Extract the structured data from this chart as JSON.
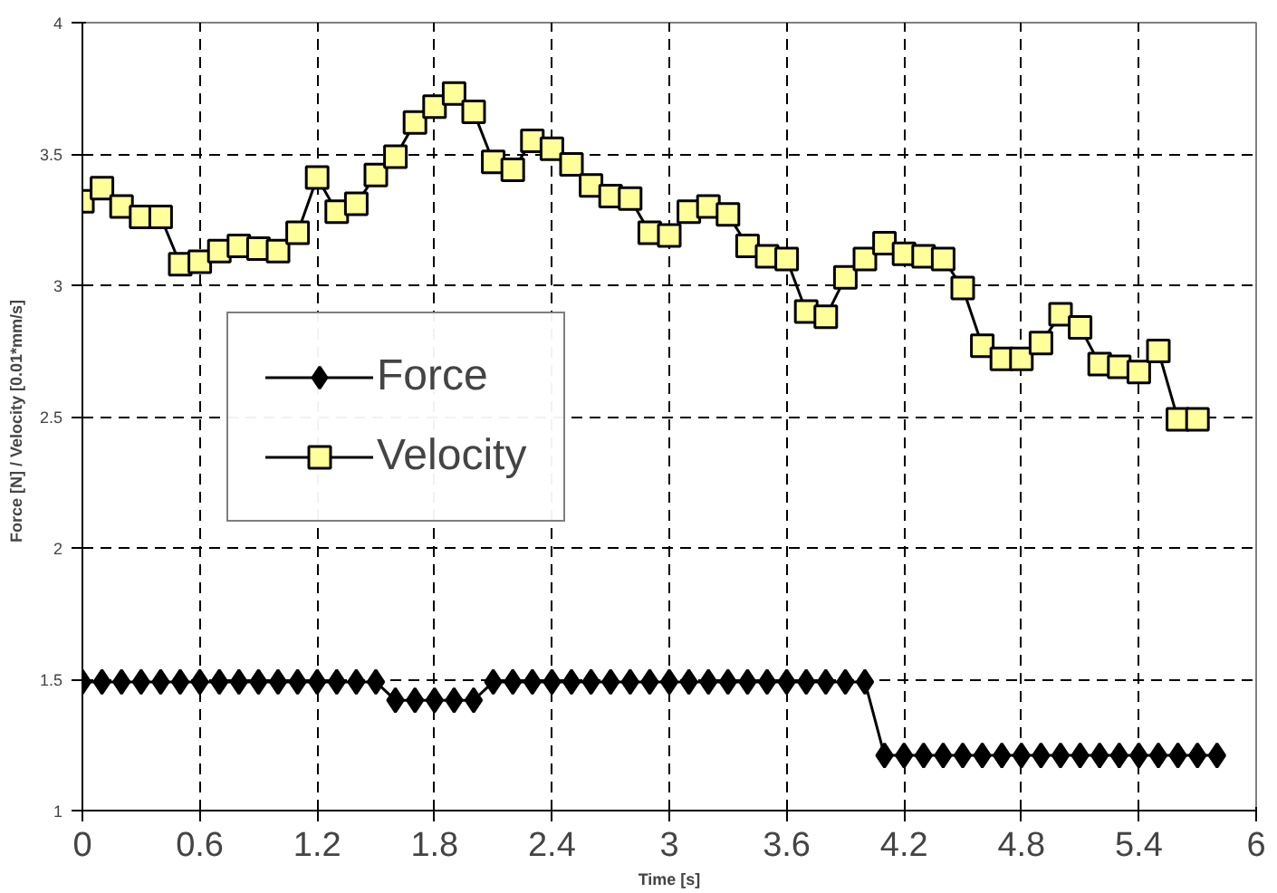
{
  "chart_data": {
    "type": "line",
    "xlabel": "Time [s]",
    "ylabel": "Force [N]  /  Velocity [0.01*mm/s]",
    "xlim": [
      0,
      6
    ],
    "ylim": [
      1,
      4
    ],
    "xticks": [
      0,
      0.6,
      1.2,
      1.8,
      2.4,
      3,
      3.6,
      4.2,
      4.8,
      5.4,
      6
    ],
    "yticks": [
      1,
      1.5,
      2,
      2.5,
      3,
      3.5,
      4
    ],
    "grid": true,
    "legend": "left",
    "series": [
      {
        "name": "Force",
        "color": "#000000",
        "marker": "diamond",
        "x": [
          0,
          0.1,
          0.2,
          0.3,
          0.4,
          0.5,
          0.6,
          0.7,
          0.8,
          0.9,
          1.0,
          1.1,
          1.2,
          1.3,
          1.4,
          1.5,
          1.6,
          1.7,
          1.8,
          1.9,
          2.0,
          2.1,
          2.2,
          2.3,
          2.4,
          2.5,
          2.6,
          2.7,
          2.8,
          2.9,
          3.0,
          3.1,
          3.2,
          3.3,
          3.4,
          3.5,
          3.6,
          3.7,
          3.8,
          3.9,
          4.0,
          4.1,
          4.2,
          4.3,
          4.4,
          4.5,
          4.6,
          4.7,
          4.8,
          4.9,
          5.0,
          5.1,
          5.2,
          5.3,
          5.4,
          5.5,
          5.6,
          5.7,
          5.8
        ],
        "values": [
          1.49,
          1.49,
          1.49,
          1.49,
          1.49,
          1.49,
          1.49,
          1.49,
          1.49,
          1.49,
          1.49,
          1.49,
          1.49,
          1.49,
          1.49,
          1.49,
          1.42,
          1.42,
          1.42,
          1.42,
          1.42,
          1.49,
          1.49,
          1.49,
          1.49,
          1.49,
          1.49,
          1.49,
          1.49,
          1.49,
          1.49,
          1.49,
          1.49,
          1.49,
          1.49,
          1.49,
          1.49,
          1.49,
          1.49,
          1.49,
          1.49,
          1.21,
          1.21,
          1.21,
          1.21,
          1.21,
          1.21,
          1.21,
          1.21,
          1.21,
          1.21,
          1.21,
          1.21,
          1.21,
          1.21,
          1.21,
          1.21,
          1.21,
          1.21
        ]
      },
      {
        "name": "Velocity",
        "color": "#ffff99",
        "marker": "square",
        "x": [
          0,
          0.1,
          0.2,
          0.3,
          0.4,
          0.5,
          0.6,
          0.7,
          0.8,
          0.9,
          1.0,
          1.1,
          1.2,
          1.3,
          1.4,
          1.5,
          1.6,
          1.7,
          1.8,
          1.9,
          2.0,
          2.1,
          2.2,
          2.3,
          2.4,
          2.5,
          2.6,
          2.7,
          2.8,
          2.9,
          3.0,
          3.1,
          3.2,
          3.3,
          3.4,
          3.5,
          3.6,
          3.7,
          3.8,
          3.9,
          4.0,
          4.1,
          4.2,
          4.3,
          4.4,
          4.5,
          4.6,
          4.7,
          4.8,
          4.9,
          5.0,
          5.1,
          5.2,
          5.3,
          5.4,
          5.5,
          5.6,
          5.7
        ],
        "values": [
          3.32,
          3.37,
          3.3,
          3.26,
          3.26,
          3.08,
          3.09,
          3.13,
          3.15,
          3.14,
          3.13,
          3.2,
          3.41,
          3.28,
          3.31,
          3.42,
          3.49,
          3.62,
          3.68,
          3.73,
          3.66,
          3.47,
          3.44,
          3.55,
          3.52,
          3.46,
          3.38,
          3.34,
          3.33,
          3.2,
          3.19,
          3.28,
          3.3,
          3.27,
          3.15,
          3.11,
          3.1,
          2.9,
          2.88,
          3.03,
          3.1,
          3.16,
          3.12,
          3.11,
          3.1,
          2.99,
          2.77,
          2.72,
          2.72,
          2.78,
          2.89,
          2.84,
          2.7,
          2.69,
          2.67,
          2.75,
          2.49,
          2.49
        ]
      }
    ]
  }
}
